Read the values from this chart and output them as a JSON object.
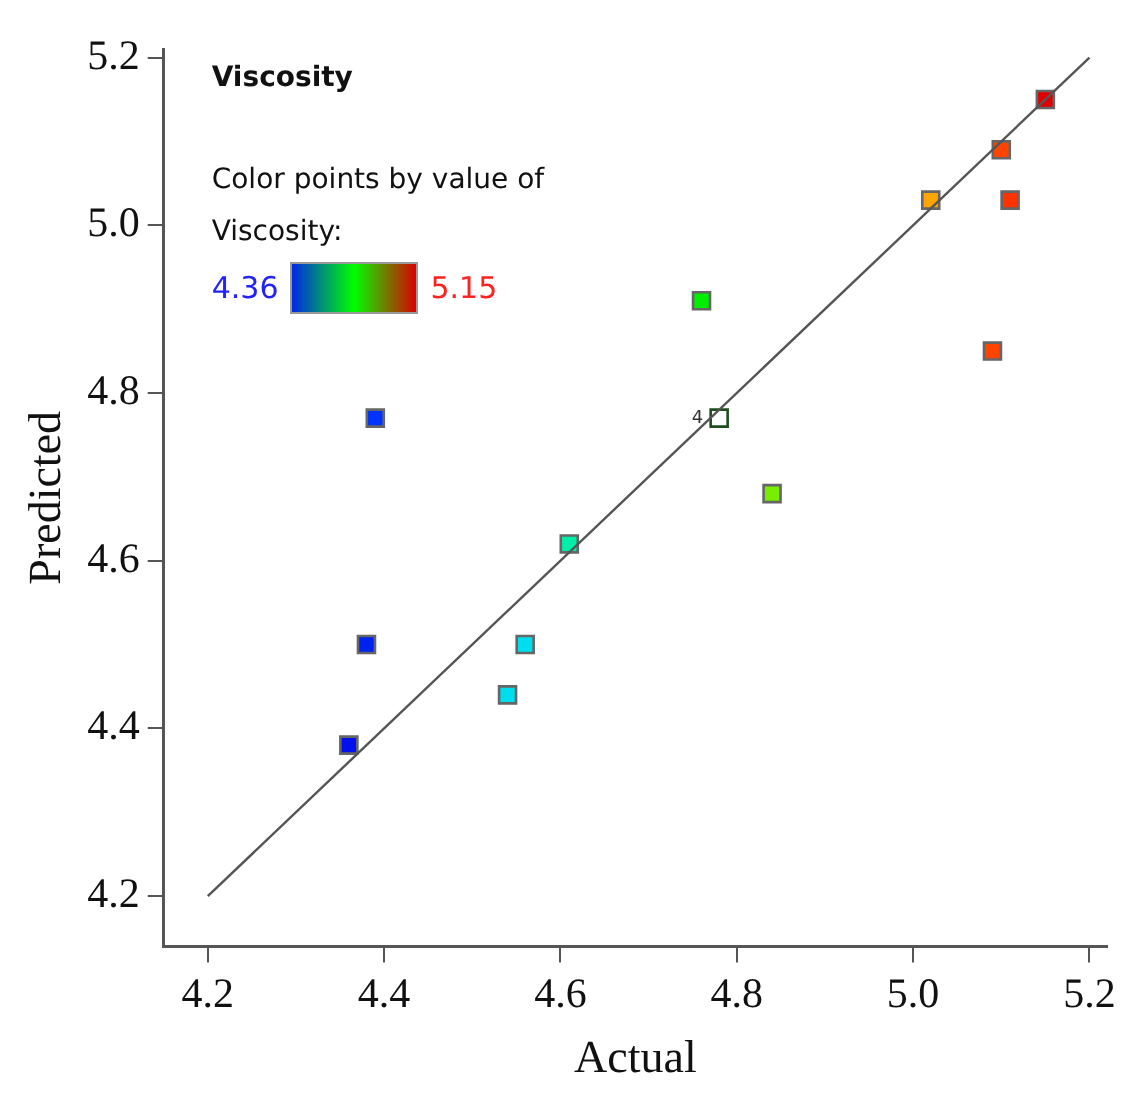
{
  "chart_data": {
    "type": "scatter",
    "title": "Viscosity",
    "xlabel": "Actual",
    "ylabel": "Predicted",
    "xlim": [
      4.15,
      5.22
    ],
    "ylim": [
      4.14,
      5.21
    ],
    "xticks": [
      4.2,
      4.4,
      4.6,
      4.8,
      {
        "value": 5,
        "label": "5.0"
      },
      5.2
    ],
    "yticks": [
      4.2,
      4.4,
      4.6,
      4.8,
      {
        "value": 5,
        "label": "5.0"
      },
      5.2
    ],
    "grid": false,
    "legend": false,
    "marker": "square",
    "series": [
      {
        "type": "line",
        "color": "#555555",
        "x": [
          4.2,
          5.2
        ],
        "values": [
          4.2,
          5.2
        ],
        "marker": "none"
      },
      {
        "x": [
          5.15,
          5.1,
          5.02,
          5.11,
          5.09,
          4.76,
          4.39,
          4.78,
          4.84,
          4.61,
          4.38,
          4.56,
          4.54,
          4.36
        ],
        "values": [
          5.15,
          5.09,
          5.03,
          5.03,
          4.85,
          4.91,
          4.77,
          4.77,
          4.68,
          4.62,
          4.5,
          4.5,
          4.44,
          4.38
        ],
        "colors": [
          "#e00000",
          "#ff4400",
          "#ffa500",
          "#ff3300",
          "#ff4400",
          "#00ee00",
          "#0033ff",
          "#ffffff",
          "#77ee00",
          "#00eeaa",
          "#0022ee",
          "#00ddee",
          "#00ddee",
          "#0011ee"
        ]
      }
    ],
    "annotations": [
      "Color points by value of Viscosity:",
      "4.36",
      "5.15",
      {
        "text": "4",
        "x": 4.78,
        "y": 4.77
      }
    ]
  }
}
